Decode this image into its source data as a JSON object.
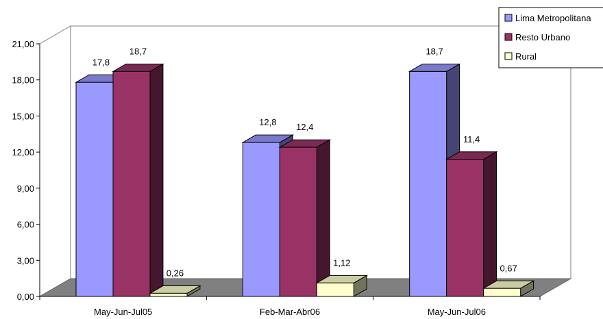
{
  "chart_data": {
    "type": "bar",
    "title": "",
    "xlabel": "",
    "ylabel": "",
    "ylim": [
      0,
      21
    ],
    "y_ticks": [
      "0,00",
      "3,00",
      "6,00",
      "9,00",
      "12,00",
      "15,00",
      "18,00",
      "21,00"
    ],
    "categories": [
      "May-Jun-Jul05",
      "Feb-Mar-Abr06",
      "May-Jun-Jul06"
    ],
    "series": [
      {
        "name": "Lima Metropolitana",
        "values": [
          17.8,
          12.8,
          18.7
        ],
        "labels": [
          "17,8",
          "12,8",
          "18,7"
        ],
        "color": "#9999ff"
      },
      {
        "name": "Resto Urbano",
        "values": [
          18.7,
          12.4,
          11.4
        ],
        "labels": [
          "18,7",
          "12,4",
          "11,4"
        ],
        "color": "#993366"
      },
      {
        "name": "Rural",
        "values": [
          0.26,
          1.12,
          0.67
        ],
        "labels": [
          "0,26",
          "1,12",
          "0,67"
        ],
        "color": "#ffffcc"
      }
    ],
    "legend_position": "top-right",
    "grid": false,
    "three_d": true,
    "floor_color": "#808080"
  }
}
